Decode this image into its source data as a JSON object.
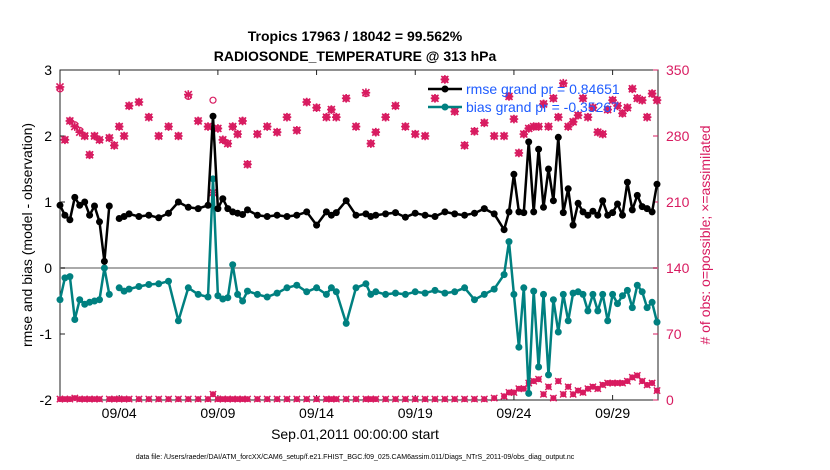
{
  "chart_data": {
    "type": "line",
    "title": "Tropics 17963 / 18042 = 99.562%",
    "subtitle": "RADIOSONDE_TEMPERATURE @ 313 hPa",
    "xlabel": "Sep.01,2011 00:00:00 start",
    "ylabel_left": "rmse and bias (model - observation)",
    "ylabel_right": "# of obs: o=possible; ×=assimilated",
    "footer": "data file: /Users/raeder/DAI/ATM_forcXX/CAM6_setup/f.e21.FHIST_BGC.f09_025.CAM6assim.011/Diags_NTrS_2011-09/obs_diag_output.nc",
    "x_range": [
      0.5,
      30.8
    ],
    "ylim_left": [
      -2,
      3
    ],
    "ylim_right": [
      0,
      350
    ],
    "x_ticks": [
      3.5,
      8.5,
      13.5,
      18.5,
      23.5,
      28.5
    ],
    "x_tick_labels": [
      "09/04",
      "09/09",
      "09/14",
      "09/19",
      "09/24",
      "09/29"
    ],
    "y_ticks_left": [
      "-2",
      "-1",
      "0",
      "1",
      "2",
      "3"
    ],
    "y_ticks_right": [
      "0",
      "70",
      "140",
      "210",
      "280",
      "350"
    ],
    "zero_line": 0,
    "colors": {
      "rmse": "#000000",
      "bias": "#008080",
      "obs": "#d81b60",
      "legend_text": "#1f5cff",
      "zero": "#aaaaaa"
    },
    "legend": [
      {
        "name": "rmse",
        "label": "rmse grand pr = 0.84651"
      },
      {
        "name": "bias",
        "label": "bias grand pr = -0.35267"
      }
    ],
    "x": [
      0.5,
      0.75,
      1.0,
      1.25,
      1.5,
      1.75,
      2.0,
      2.25,
      2.5,
      2.75,
      3.0,
      3.25,
      3.5,
      3.75,
      4.0,
      4.5,
      5.0,
      5.5,
      6.0,
      6.5,
      7.0,
      7.5,
      8.0,
      8.25,
      8.5,
      8.75,
      9.0,
      9.25,
      9.5,
      9.75,
      10.0,
      10.5,
      11.0,
      11.5,
      12.0,
      12.5,
      13.0,
      13.5,
      14.0,
      14.25,
      14.5,
      15.0,
      15.5,
      16.0,
      16.25,
      16.5,
      17.0,
      17.5,
      18.0,
      18.5,
      19.0,
      19.5,
      20.0,
      20.5,
      21.0,
      21.5,
      22.0,
      22.5,
      23.0,
      23.25,
      23.5,
      23.75,
      24.0,
      24.25,
      24.5,
      24.75,
      25.0,
      25.25,
      25.5,
      25.75,
      26.0,
      26.25,
      26.5,
      26.75,
      27.0,
      27.25,
      27.5,
      27.75,
      28.0,
      28.25,
      28.5,
      28.75,
      29.0,
      29.25,
      29.5,
      29.75,
      30.0,
      30.25,
      30.5,
      30.75
    ],
    "series": [
      {
        "name": "rmse",
        "axis": "left",
        "style": "line",
        "values": [
          0.95,
          0.8,
          0.73,
          1.07,
          0.95,
          1.0,
          0.8,
          0.94,
          0.7,
          0.1,
          0.94,
          null,
          0.75,
          0.78,
          0.82,
          0.78,
          0.8,
          0.76,
          0.83,
          1.0,
          0.92,
          0.9,
          0.95,
          2.3,
          0.9,
          1.05,
          0.9,
          0.85,
          0.83,
          0.81,
          0.88,
          0.8,
          0.78,
          0.8,
          0.78,
          0.8,
          0.85,
          0.65,
          0.85,
          0.8,
          0.84,
          1.02,
          0.8,
          0.82,
          0.78,
          0.8,
          0.82,
          0.84,
          0.77,
          0.83,
          0.8,
          0.78,
          0.85,
          0.82,
          0.8,
          0.83,
          0.9,
          0.82,
          0.58,
          0.85,
          1.42,
          0.85,
          0.84,
          1.91,
          0.85,
          1.8,
          0.92,
          1.5,
          1.02,
          1.98,
          0.84,
          1.2,
          0.65,
          0.98,
          0.85,
          0.8,
          0.86,
          0.8,
          1.02,
          0.8,
          0.84,
          0.97,
          0.8,
          1.3,
          0.88,
          1.1,
          0.93,
          0.9,
          0.85,
          1.27
        ]
      },
      {
        "name": "bias",
        "axis": "left",
        "style": "line",
        "values": [
          -0.48,
          -0.15,
          -0.13,
          -0.78,
          -0.48,
          -0.55,
          -0.52,
          -0.5,
          -0.48,
          0.0,
          -0.4,
          null,
          -0.3,
          -0.35,
          -0.32,
          -0.28,
          -0.25,
          -0.24,
          -0.2,
          -0.8,
          -0.3,
          -0.4,
          -0.44,
          1.35,
          -0.42,
          -0.47,
          -0.45,
          0.05,
          -0.4,
          -0.5,
          -0.35,
          -0.4,
          -0.44,
          -0.38,
          -0.3,
          -0.26,
          -0.36,
          -0.3,
          -0.4,
          -0.3,
          -0.36,
          -0.84,
          -0.3,
          -0.24,
          -0.4,
          -0.36,
          -0.4,
          -0.38,
          -0.4,
          -0.36,
          -0.38,
          -0.34,
          -0.38,
          -0.36,
          -0.3,
          -0.48,
          -0.4,
          -0.32,
          -0.1,
          0.4,
          -0.4,
          -1.2,
          -0.3,
          -1.9,
          -0.35,
          -1.5,
          -0.4,
          -1.62,
          -0.48,
          -0.97,
          -0.4,
          -0.8,
          -0.38,
          -0.36,
          -0.4,
          -0.65,
          -0.4,
          -0.65,
          -0.4,
          -0.8,
          -0.4,
          -0.54,
          -0.42,
          -0.34,
          -0.6,
          -0.26,
          -0.36,
          -0.6,
          -0.52,
          -0.82
        ]
      },
      {
        "name": "obs_possible",
        "axis": "right",
        "style": "circle",
        "values": [
          330,
          276,
          296,
          292,
          286,
          280,
          260,
          280,
          276,
          null,
          278,
          270,
          290,
          280,
          312,
          316,
          300,
          280,
          290,
          280,
          322,
          296,
          290,
          318,
          288,
          276,
          272,
          290,
          282,
          296,
          250,
          282,
          290,
          284,
          300,
          286,
          316,
          310,
          300,
          308,
          300,
          320,
          290,
          325,
          272,
          284,
          300,
          312,
          290,
          282,
          280,
          320,
          340,
          306,
          270,
          285,
          294,
          280,
          280,
          322,
          298,
          262,
          282,
          288,
          290,
          290,
          314,
          290,
          320,
          300,
          335,
          290,
          295,
          302,
          320,
          300,
          310,
          284,
          282,
          308,
          318,
          312,
          304,
          310,
          330,
          320,
          318,
          300,
          325,
          318
        ]
      },
      {
        "name": "obs_assimilated",
        "axis": "right",
        "style": "x",
        "values": [
          332,
          276,
          296,
          290,
          284,
          280,
          260,
          280,
          276,
          null,
          278,
          270,
          290,
          280,
          312,
          316,
          300,
          280,
          290,
          280,
          324,
          296,
          290,
          220,
          288,
          276,
          272,
          290,
          282,
          296,
          250,
          282,
          290,
          284,
          300,
          286,
          316,
          310,
          300,
          308,
          300,
          320,
          290,
          326,
          272,
          284,
          300,
          312,
          290,
          282,
          280,
          320,
          340,
          306,
          270,
          285,
          294,
          280,
          280,
          322,
          298,
          262,
          282,
          288,
          290,
          290,
          314,
          290,
          320,
          300,
          336,
          290,
          295,
          302,
          320,
          300,
          310,
          284,
          282,
          308,
          318,
          312,
          304,
          310,
          330,
          320,
          318,
          300,
          325,
          318
        ]
      },
      {
        "name": "obs_bottom",
        "axis": "right",
        "style": "marker",
        "values": [
          1,
          1,
          1,
          2,
          1,
          1,
          1,
          1,
          1,
          null,
          1,
          1,
          1,
          1,
          1,
          1,
          1,
          1,
          1,
          1,
          1,
          1,
          1,
          6,
          1,
          1,
          1,
          1,
          1,
          1,
          1,
          1,
          1,
          1,
          1,
          1,
          1,
          1,
          1,
          1,
          1,
          1,
          1,
          1,
          1,
          1,
          1,
          1,
          1,
          1,
          1,
          1,
          1,
          1,
          1,
          1,
          1,
          2,
          4,
          8,
          8,
          12,
          12,
          18,
          20,
          22,
          6,
          14,
          2,
          20,
          6,
          14,
          6,
          10,
          8,
          12,
          14,
          12,
          16,
          18,
          18,
          18,
          18,
          20,
          24,
          26,
          20,
          16,
          18,
          10
        ]
      }
    ]
  }
}
